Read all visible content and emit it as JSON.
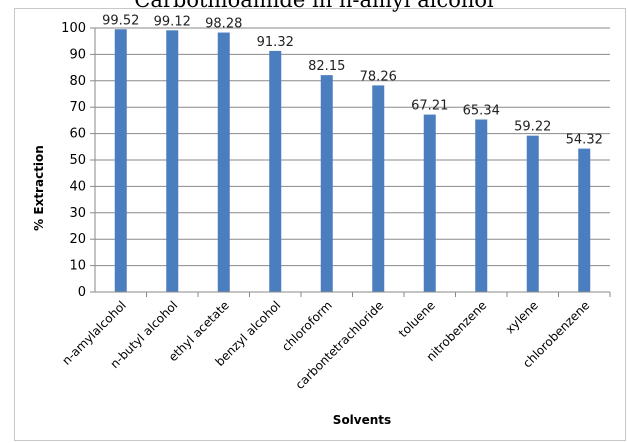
{
  "chart_data": {
    "type": "bar",
    "title": "Carbothioamide in n-amyl alcohol",
    "xlabel": "Solvents",
    "ylabel": "% Extraction",
    "ylim": [
      0,
      100
    ],
    "ytick_step": 10,
    "grid": true,
    "legend": "none",
    "bar_color": "#4a7ebf",
    "categories": [
      "n-amylalcohol",
      "n-butyl alcohol",
      "ethyl acetate",
      "benzyl alcohol",
      "chloroform",
      "carbontetrachloride",
      "toluene",
      "nitrobenzene",
      "xylene",
      "chlorobenzene"
    ],
    "values": [
      99.52,
      99.12,
      98.28,
      91.32,
      82.15,
      78.26,
      67.21,
      65.34,
      59.22,
      54.32
    ]
  }
}
